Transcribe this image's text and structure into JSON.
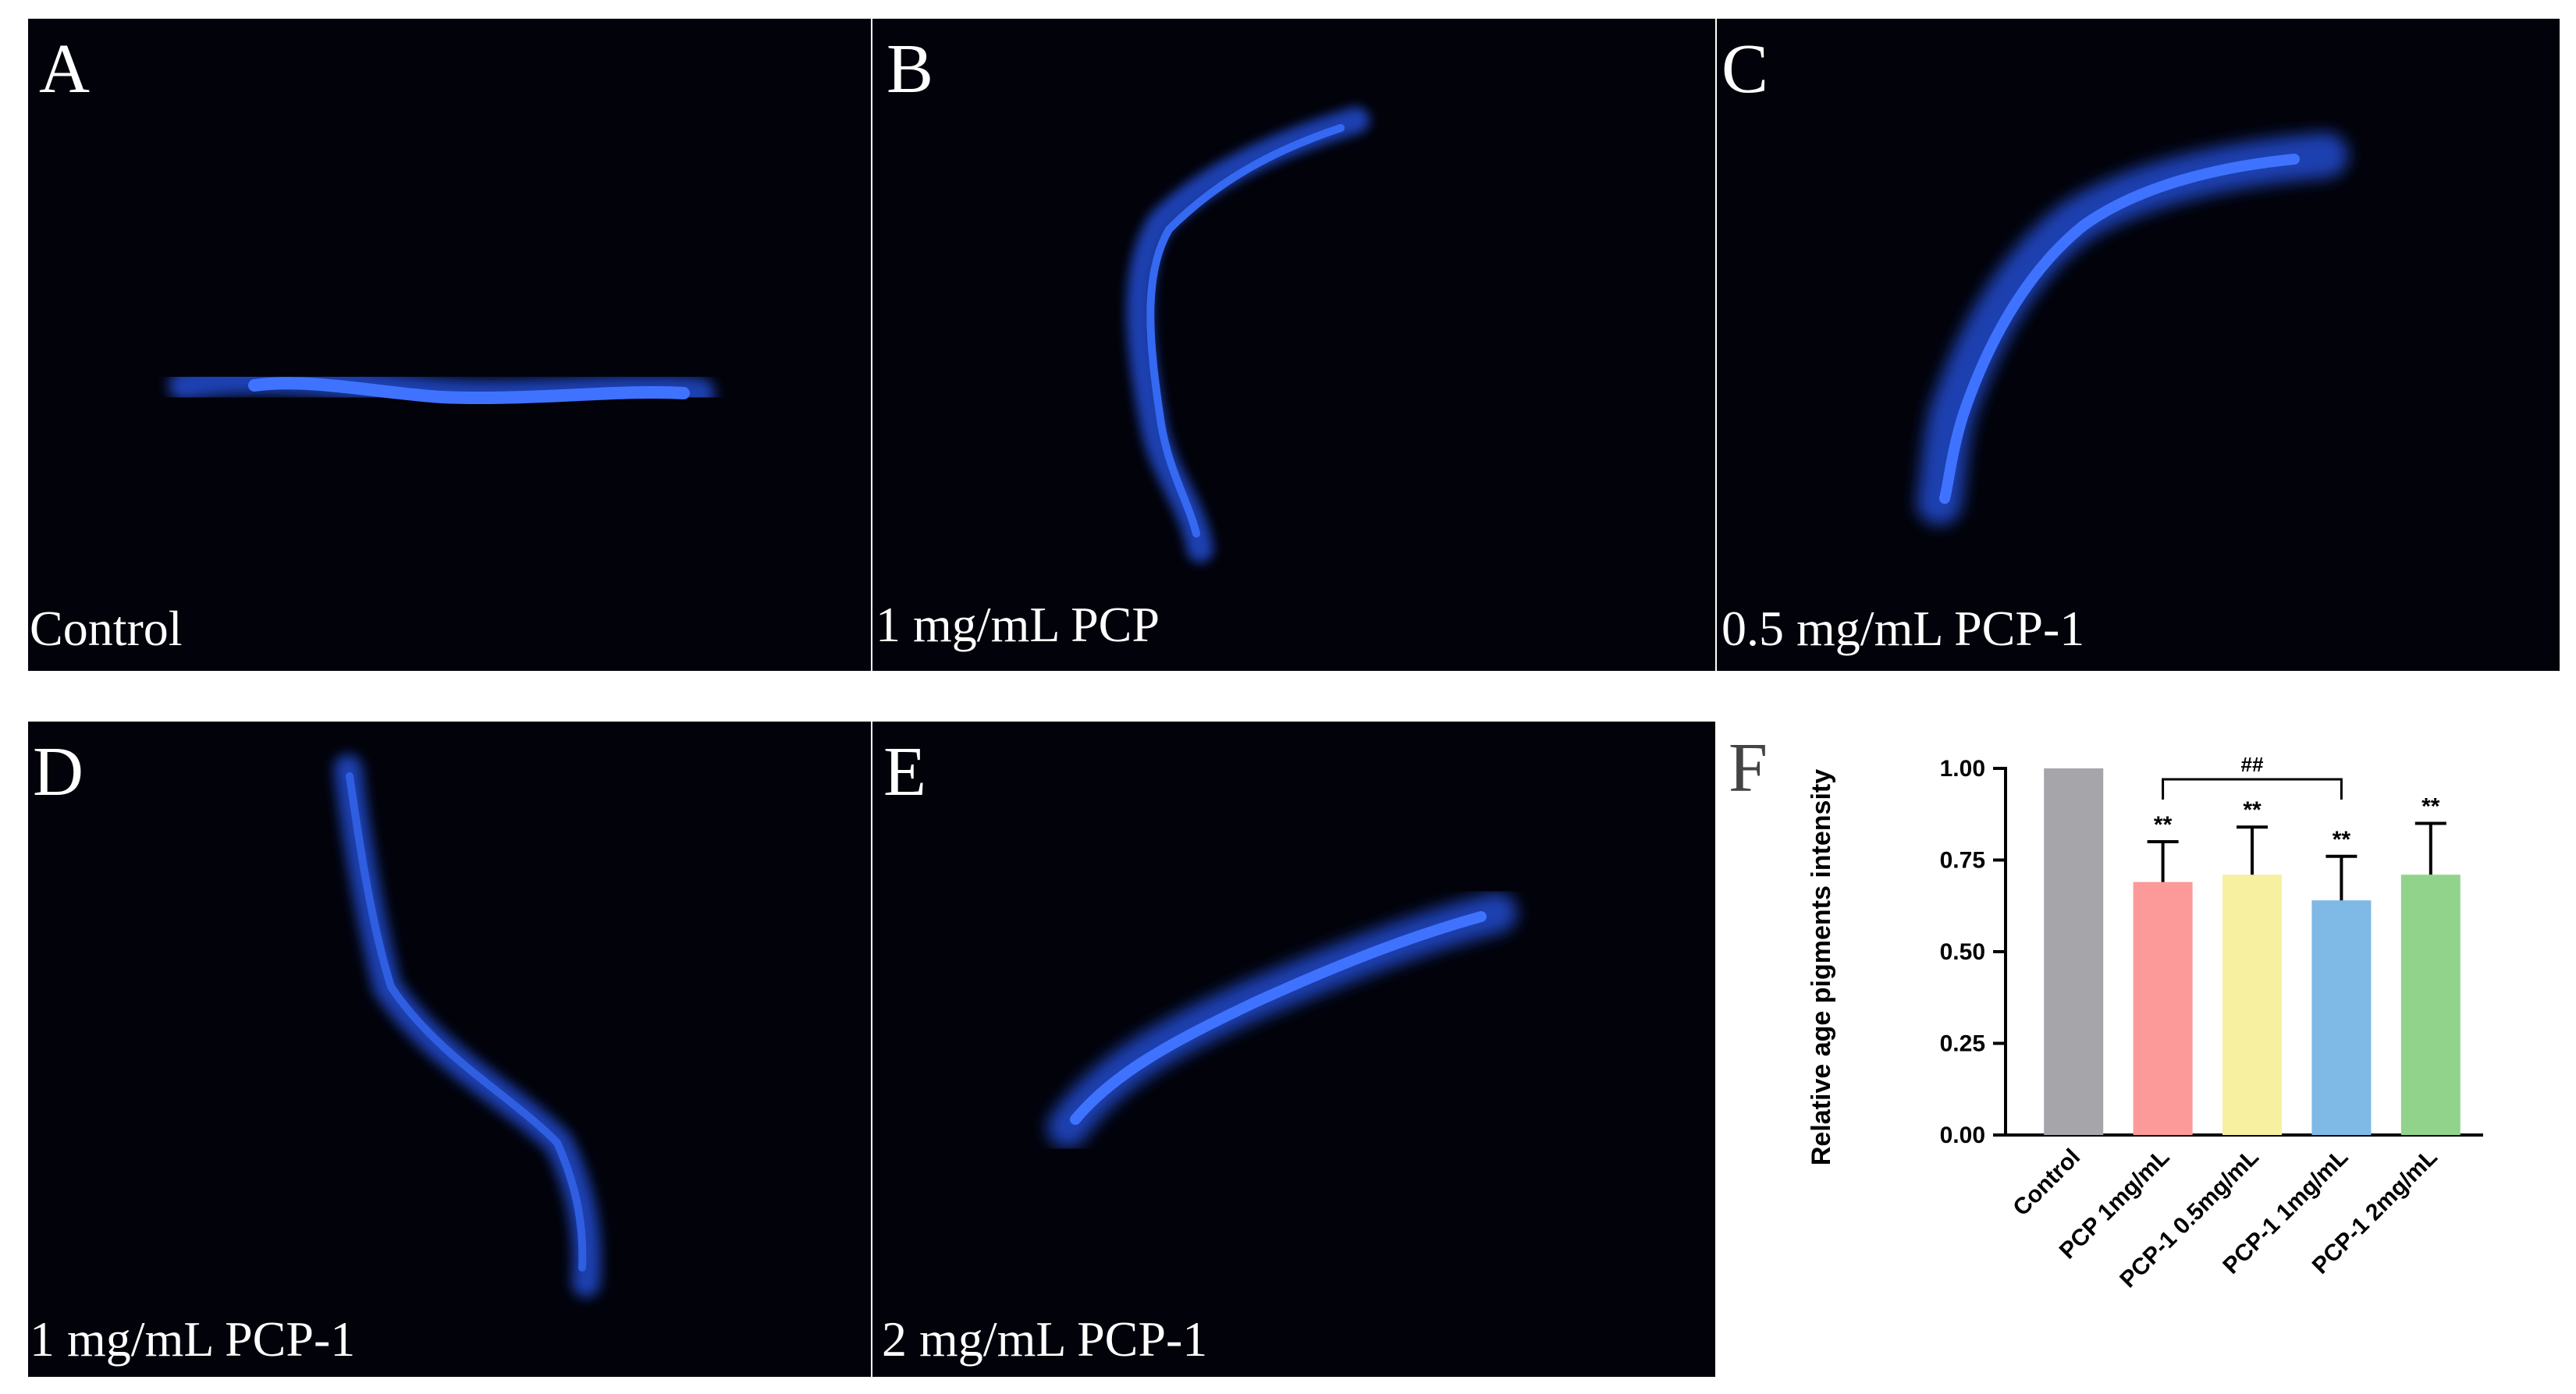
{
  "panels": [
    {
      "letter": "A",
      "caption": "Control"
    },
    {
      "letter": "B",
      "caption": "1 mg/mL PCP"
    },
    {
      "letter": "C",
      "caption": "0.5 mg/mL PCP-1"
    },
    {
      "letter": "D",
      "caption": "1 mg/mL PCP-1"
    },
    {
      "letter": "E",
      "caption": "2 mg/mL PCP-1"
    }
  ],
  "chart_letter": "F",
  "chart_data": {
    "type": "bar",
    "ylabel": "Relative age pigments intensity",
    "xlabel": "",
    "ylim": [
      0,
      1.0
    ],
    "yticks": [
      "0.00",
      "0.25",
      "0.50",
      "0.75",
      "1.00"
    ],
    "categories": [
      "Control",
      "PCP   1mg/mL",
      "PCP-1   0.5mg/mL",
      "PCP-1   1mg/mL",
      "PCP-1   2mg/mL"
    ],
    "values": [
      1.0,
      0.69,
      0.71,
      0.64,
      0.71
    ],
    "errors": [
      0,
      0.11,
      0.13,
      0.12,
      0.14
    ],
    "colors": [
      "#a6a5aa",
      "#fb9a98",
      "#f7f0a0",
      "#7fb9e5",
      "#92d38b"
    ],
    "annotations": [
      "",
      "**",
      "**",
      "**",
      "**"
    ],
    "bracket": {
      "from": 1,
      "to": 3,
      "label": "##"
    }
  }
}
